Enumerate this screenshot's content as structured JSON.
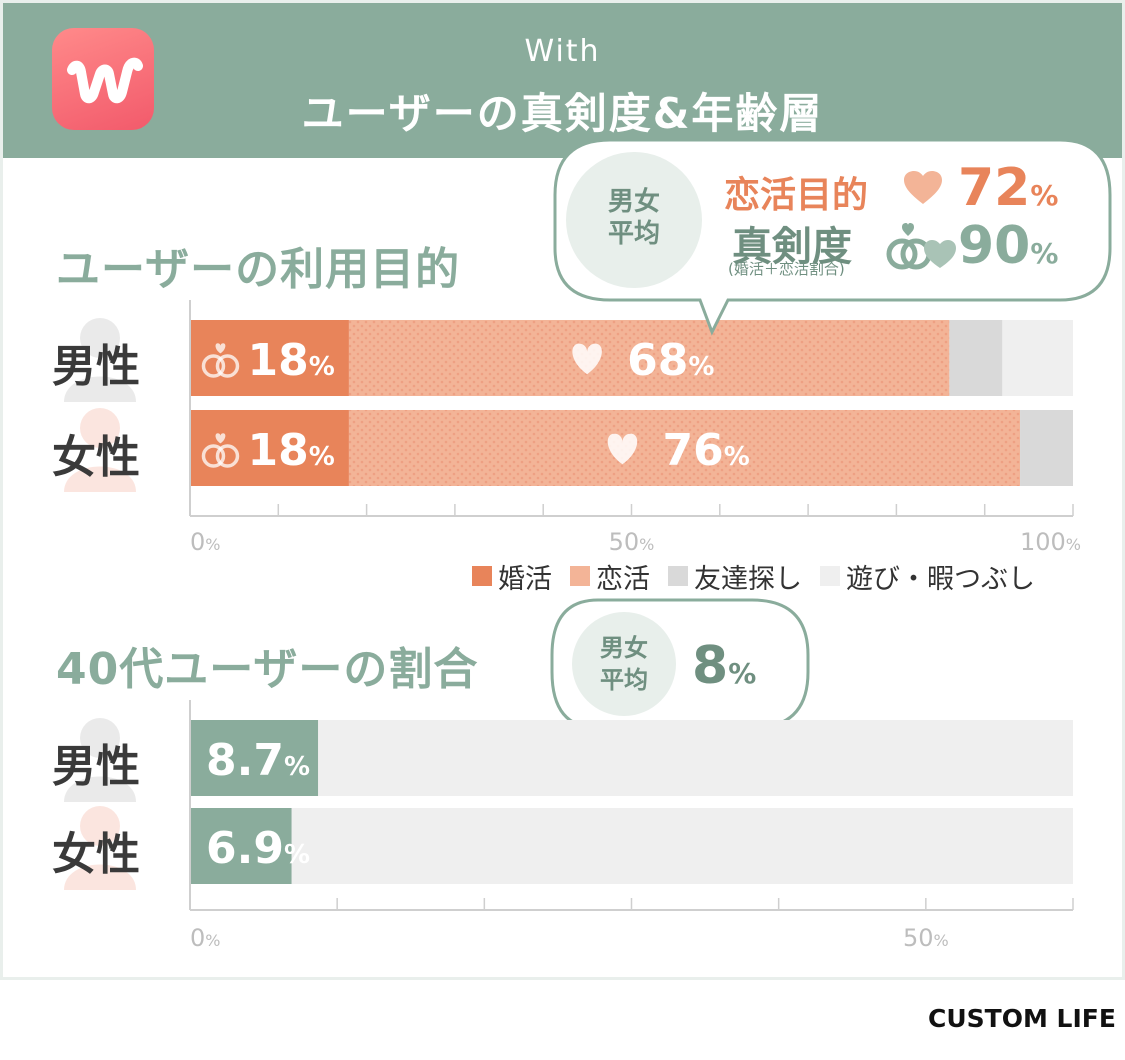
{
  "header": {
    "subtitle": "With",
    "title": "ユーザーの真剣度&年齢層"
  },
  "colors": {
    "header_bg": "#8aac9c",
    "konkatsu": "#e8845a",
    "renkatsu": "#f3b497",
    "tomodachi": "#d9d9d9",
    "asobi": "#efefef",
    "teal": "#8aac9c"
  },
  "icons": {
    "logo": "with-app-logo-icon",
    "rings": "wedding-rings-icon",
    "heart": "heart-icon",
    "person": "person-silhouette-icon"
  },
  "purpose_section": {
    "title": "ユーザーの利用目的",
    "bubble": {
      "circle": "男女\n平均",
      "renkatsu_label": "恋活目的",
      "renkatsu_value": "72",
      "seriousness_label": "真剣度",
      "seriousness_note": "(婚活＋恋活割合)",
      "seriousness_value": "90",
      "unit": "%"
    }
  },
  "age_section": {
    "title": "40代ユーザーの割合",
    "bubble": {
      "circle": "男女\n平均",
      "value": "8",
      "unit": "%"
    }
  },
  "brand": "CUSTOM LIFE",
  "chart_data": [
    {
      "type": "bar",
      "orientation": "horizontal",
      "stacked": true,
      "title": "ユーザーの利用目的",
      "categories": [
        "男性",
        "女性"
      ],
      "series": [
        {
          "name": "婚活",
          "values": [
            18,
            18
          ]
        },
        {
          "name": "恋活",
          "values": [
            68,
            76
          ]
        },
        {
          "name": "友達探し",
          "values": [
            6,
            6
          ]
        },
        {
          "name": "遊び・暇つぶし",
          "values": [
            8,
            0
          ]
        }
      ],
      "data_labels": [
        {
          "category": "男性",
          "series": "婚活",
          "text": "18"
        },
        {
          "category": "男性",
          "series": "恋活",
          "text": "68"
        },
        {
          "category": "女性",
          "series": "婚活",
          "text": "18"
        },
        {
          "category": "女性",
          "series": "恋活",
          "text": "76"
        }
      ],
      "unit": "%",
      "xlim": [
        0,
        100
      ],
      "x_ticks": [
        "0",
        "50",
        "100"
      ],
      "legend_position": "bottom-right"
    },
    {
      "type": "bar",
      "orientation": "horizontal",
      "title": "40代ユーザーの割合",
      "categories": [
        "男性",
        "女性"
      ],
      "values": [
        8.7,
        6.9
      ],
      "value_labels": [
        "8.7",
        "6.9"
      ],
      "unit": "%",
      "xlim": [
        0,
        60
      ],
      "x_ticks": [
        "0",
        "50"
      ]
    }
  ]
}
